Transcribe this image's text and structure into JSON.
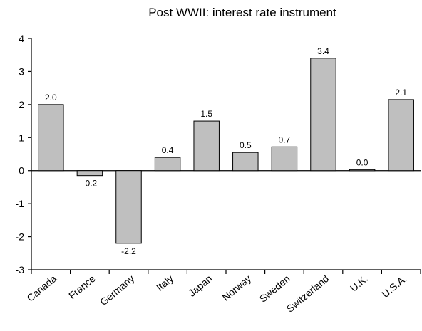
{
  "chart_data": {
    "type": "bar",
    "title": "Post WWII: interest rate instrument",
    "xlabel": "",
    "ylabel": "",
    "ylim": [
      -3,
      4
    ],
    "yticks": [
      -3,
      -2,
      -1,
      0,
      1,
      2,
      3,
      4
    ],
    "grid": false,
    "legend": "none",
    "bar_color": "#bfbfbf",
    "categories": [
      "Canada",
      "France",
      "Germany",
      "Italy",
      "Japan",
      "Norway",
      "Sweden",
      "Switzerland",
      "U.K.",
      "U.S.A."
    ],
    "values": [
      2.0,
      -0.15,
      -2.2,
      0.4,
      1.5,
      0.55,
      0.72,
      3.4,
      0.03,
      2.15
    ],
    "data_labels": [
      "2.0",
      "-0.2",
      "-2.2",
      "0.4",
      "1.5",
      "0.5",
      "0.7",
      "3.4",
      "0.0",
      "2.1"
    ]
  }
}
